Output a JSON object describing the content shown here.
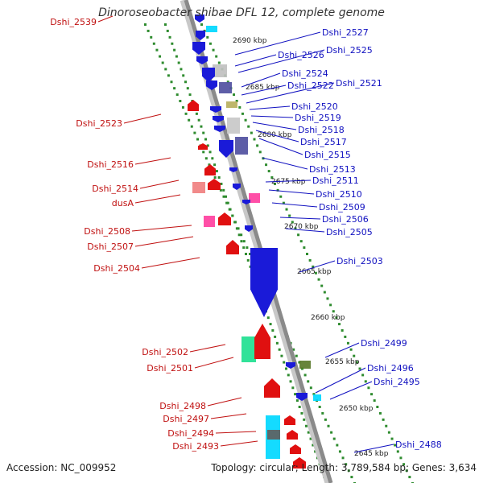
{
  "title": "Dinoroseobacter shibae DFL 12, complete genome",
  "accession": "Accession: NC_009952",
  "summary": "Topology: circular; Length: 3,789,584 bp; Genes: 3,634",
  "colors": {
    "backbone": "#8a8a8a",
    "ticks": "#2e8b2e",
    "forward_label": "#1010c0",
    "reverse_label": "#c01010",
    "forward_gene": "#1a1ad8",
    "reverse_gene": "#e01010"
  },
  "kbp_labels": [
    "2690 kbp",
    "2685 kbp",
    "2680 kbp",
    "2675 kbp",
    "2670 kbp",
    "2665 kbp",
    "2660 kbp",
    "2655 kbp",
    "2650 kbp",
    "2645 kbp"
  ],
  "forward_genes": [
    "Dshi_2527",
    "Dshi_2526",
    "Dshi_2525",
    "Dshi_2524",
    "Dshi_2522",
    "Dshi_2521",
    "Dshi_2520",
    "Dshi_2519",
    "Dshi_2518",
    "Dshi_2517",
    "Dshi_2515",
    "Dshi_2513",
    "Dshi_2511",
    "Dshi_2510",
    "Dshi_2509",
    "Dshi_2506",
    "Dshi_2505",
    "Dshi_2503",
    "Dshi_2499",
    "Dshi_2496",
    "Dshi_2495",
    "Dshi_2488"
  ],
  "reverse_genes": [
    "Dshi_2539",
    "Dshi_2523",
    "Dshi_2516",
    "Dshi_2514",
    "dusA",
    "Dshi_2508",
    "Dshi_2507",
    "Dshi_2504",
    "Dshi_2502",
    "Dshi_2501",
    "Dshi_2498",
    "Dshi_2497",
    "Dshi_2494",
    "Dshi_2493"
  ]
}
